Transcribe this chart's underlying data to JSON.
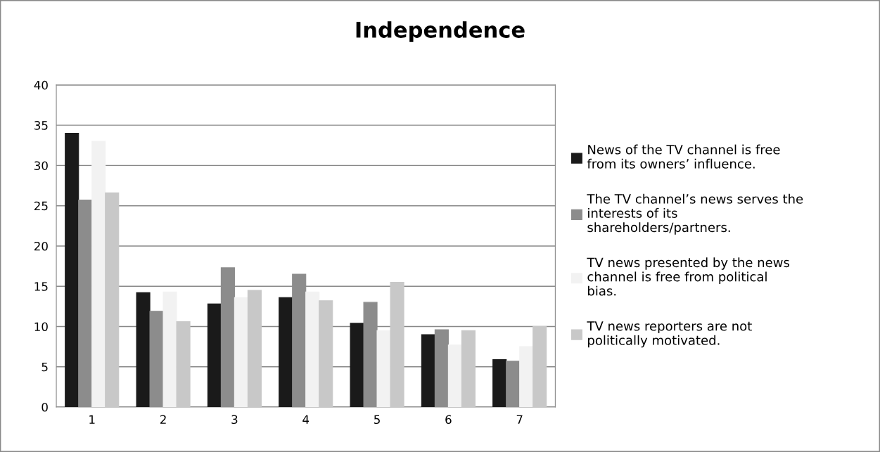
{
  "chart_data": {
    "type": "bar",
    "title": "Independence",
    "categories": [
      "1",
      "2",
      "3",
      "4",
      "5",
      "6",
      "7"
    ],
    "series": [
      {
        "name": "News of the TV channel is free from its owners’ influence.",
        "color": "#1a1a1a",
        "values": [
          34.0,
          14.2,
          12.8,
          13.6,
          10.4,
          9.0,
          5.9
        ]
      },
      {
        "name": "The TV channel’s news serves the interests of its shareholders/partners.",
        "color": "#8c8c8c",
        "values": [
          25.7,
          11.9,
          17.3,
          16.5,
          13.0,
          9.6,
          5.7
        ]
      },
      {
        "name": "TV news presented by the news channel is free from political bias.",
        "color": "#f2f2f2",
        "values": [
          33.0,
          14.3,
          13.6,
          14.3,
          9.5,
          7.7,
          7.5
        ]
      },
      {
        "name": "TV news reporters are not politically motivated.",
        "color": "#c8c8c8",
        "values": [
          26.6,
          10.6,
          14.5,
          13.2,
          15.5,
          9.5,
          10.0
        ]
      }
    ],
    "ylim": [
      0,
      40
    ],
    "yticks": [
      0,
      5,
      10,
      15,
      20,
      25,
      30,
      35,
      40
    ],
    "grid": "y",
    "legend": "right"
  }
}
